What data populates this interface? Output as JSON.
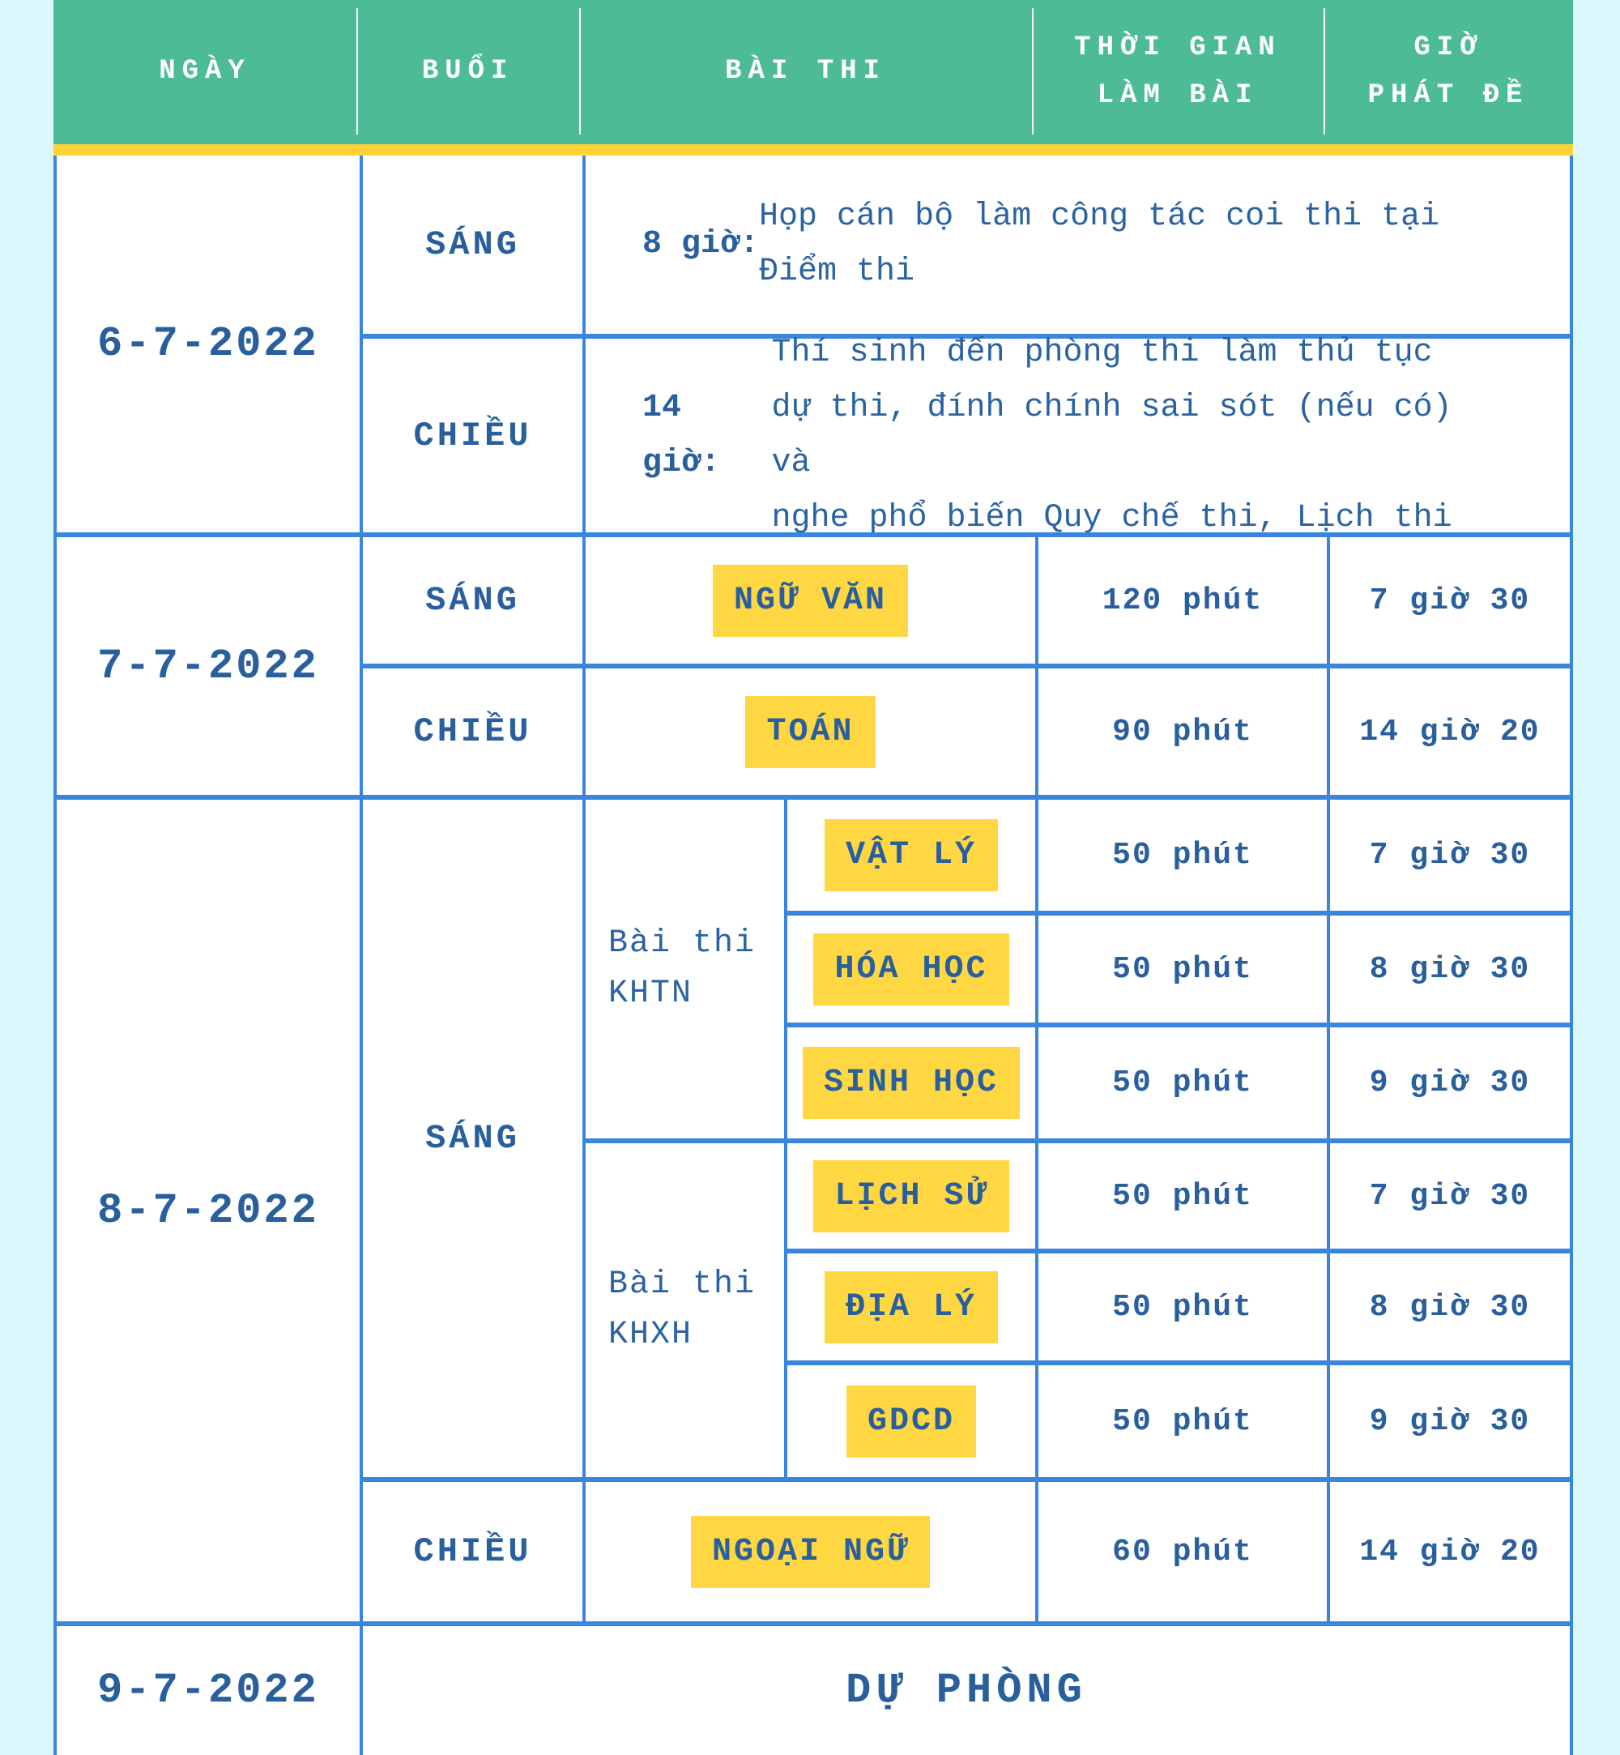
{
  "header": {
    "col_date": "NGÀY",
    "col_session": "BUỔI",
    "col_exam": "BÀI THI",
    "col_duration_line1": "THỜI GIAN",
    "col_duration_line2": "LÀM BÀI",
    "col_start_line1": "GIỜ",
    "col_start_line2": "PHÁT ĐỀ"
  },
  "days": [
    {
      "date": "6-7-2022",
      "sessions": [
        {
          "label": "SÁNG",
          "time_prefix": "8 giờ:",
          "desc": " Họp cán bộ làm công tác coi thi tại\nĐiểm thi"
        },
        {
          "label": "CHIỀU",
          "time_prefix": "14 giờ:",
          "desc": " Thí sinh đến phòng thi làm thủ tục\ndự thi, đính chính sai sót (nếu có) và\nnghe phổ biến Quy chế thi, Lịch thi"
        }
      ]
    },
    {
      "date": "7-7-2022",
      "sessions": [
        {
          "label": "SÁNG",
          "subject": "NGỮ VĂN",
          "duration": "120 phút",
          "start": "7 giờ 30"
        },
        {
          "label": "CHIỀU",
          "subject": "TOÁN",
          "duration": "90 phút",
          "start": "14 giờ 20"
        }
      ]
    },
    {
      "date": "8-7-2022",
      "morning_label": "SÁNG",
      "groups": [
        {
          "name": "Bài thi\nKHTN",
          "exams": [
            {
              "subject": "VẬT LÝ",
              "duration": "50 phút",
              "start": "7 giờ 30"
            },
            {
              "subject": "HÓA HỌC",
              "duration": "50 phút",
              "start": "8 giờ 30"
            },
            {
              "subject": "SINH HỌC",
              "duration": "50 phút",
              "start": "9 giờ 30"
            }
          ]
        },
        {
          "name": "Bài thi\nKHXH",
          "exams": [
            {
              "subject": "LỊCH SỬ",
              "duration": "50 phút",
              "start": "7 giờ 30"
            },
            {
              "subject": "ĐỊA LÝ",
              "duration": "50 phút",
              "start": "8 giờ 30"
            },
            {
              "subject": "GDCD",
              "duration": "50 phút",
              "start": "9 giờ 30"
            }
          ]
        }
      ],
      "afternoon": {
        "label": "CHIỀU",
        "subject": "NGOẠI NGỮ",
        "duration": "60 phút",
        "start": "14 giờ 20"
      }
    },
    {
      "date": "9-7-2022",
      "note": "DỰ PHÒNG"
    }
  ],
  "colors": {
    "header_bg": "#4DBB97",
    "header_text": "#FFFFFF",
    "yellow_bar": "#FFD338",
    "subject_highlight": "#FFD743",
    "text_blue": "#295F9D",
    "border_blue": "#3A86DD",
    "page_bg": "#DAF7FB",
    "cell_bg": "#FFFFFF"
  }
}
